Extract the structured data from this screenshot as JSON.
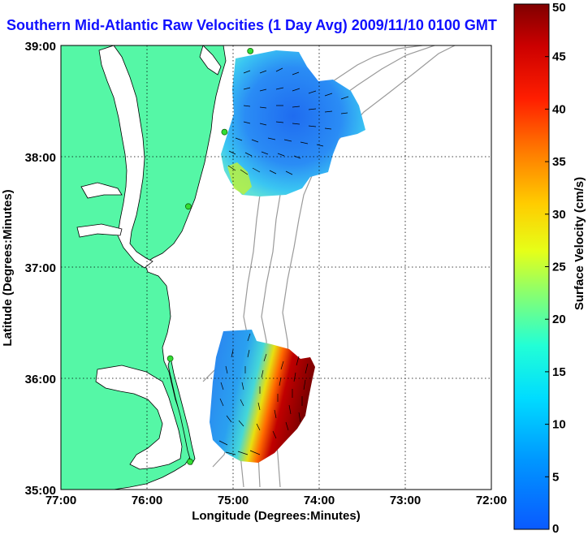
{
  "title": "Southern Mid-Atlantic Raw Velocities (1 Day Avg) 2009/11/10 0100 GMT",
  "x_axis": {
    "label": "Longitude (Degrees:Minutes)",
    "ticks": [
      "77:00",
      "76:00",
      "75:00",
      "74:00",
      "73:00",
      "72:00"
    ],
    "range_deg": [
      -77,
      -72
    ]
  },
  "y_axis": {
    "label": "Latitude (Degrees:Minutes)",
    "ticks": [
      "39:00",
      "38:00",
      "37:00",
      "36:00",
      "35:00"
    ],
    "range_deg": [
      35,
      39
    ]
  },
  "colorbar": {
    "label": "Surface Velocity (cm/s)",
    "ticks": [
      "0",
      "5",
      "10",
      "15",
      "20",
      "25",
      "30",
      "35",
      "40",
      "45",
      "50"
    ],
    "range": [
      0,
      50
    ],
    "colormap": "jet"
  },
  "colors": {
    "land": "#55f7a6",
    "water": "#ffffff",
    "bathymetry": "#9a9a9a",
    "grid": "#000000",
    "title": "#1010ff",
    "station": "#33dd33"
  },
  "stations": [
    {
      "lon": -74.8,
      "lat": 38.95
    },
    {
      "lon": -75.1,
      "lat": 38.22
    },
    {
      "lon": -75.52,
      "lat": 37.55
    },
    {
      "lon": -75.73,
      "lat": 36.18
    },
    {
      "lon": -75.5,
      "lat": 35.25
    }
  ],
  "velocity_regions": [
    {
      "name": "northern",
      "mean_cm_s": 7,
      "max_cm_s": 18
    },
    {
      "name": "southern",
      "mean_cm_s": 12,
      "max_cm_s": 50
    }
  ]
}
